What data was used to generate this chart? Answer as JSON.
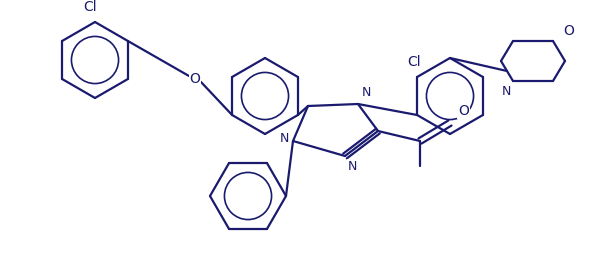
{
  "bg_color": "#ffffff",
  "line_color": "#1a1a6e",
  "line_width": 1.6,
  "figsize": [
    6.09,
    2.71
  ],
  "dpi": 100,
  "xlim": [
    0.0,
    6.09
  ],
  "ylim": [
    0.0,
    2.71
  ]
}
